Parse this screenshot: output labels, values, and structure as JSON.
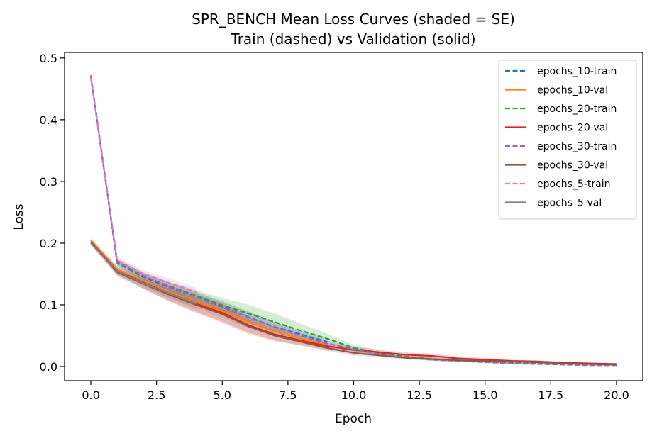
{
  "chart_data": {
    "type": "line",
    "title_line1": "SPR_BENCH Mean Loss Curves (shaded = SE)",
    "title_line2": "Train (dashed) vs Validation (solid)",
    "xlabel": "Epoch",
    "ylabel": "Loss",
    "xlim": [
      -1,
      21
    ],
    "ylim": [
      -0.023,
      0.509
    ],
    "xticks": [
      0,
      2.5,
      5,
      7.5,
      10,
      12.5,
      15,
      17.5,
      20
    ],
    "xtick_labels": [
      "0.0",
      "2.5",
      "5.0",
      "7.5",
      "10.0",
      "12.5",
      "15.0",
      "17.5",
      "20.0"
    ],
    "yticks": [
      0.0,
      0.1,
      0.2,
      0.3,
      0.4,
      0.5
    ],
    "ytick_labels": [
      "0.0",
      "0.1",
      "0.2",
      "0.3",
      "0.4",
      "0.5"
    ],
    "grid": false,
    "legend_position": "top-right",
    "series": [
      {
        "name": "epochs_10-train",
        "color": "#1f77b4",
        "dash": true,
        "x": [
          0,
          1,
          2,
          3,
          4,
          5,
          6,
          7,
          8,
          9
        ],
        "y": [
          0.47,
          0.168,
          0.145,
          0.128,
          0.113,
          0.097,
          0.08,
          0.064,
          0.052,
          0.04
        ],
        "se": [
          0.004,
          0.005,
          0.006,
          0.007,
          0.008,
          0.009,
          0.009,
          0.008,
          0.006,
          0.005
        ]
      },
      {
        "name": "epochs_10-val",
        "color": "#ff7f0e",
        "dash": false,
        "x": [
          0,
          1,
          2,
          3,
          4,
          5,
          6,
          7,
          8,
          9
        ],
        "y": [
          0.205,
          0.157,
          0.138,
          0.12,
          0.105,
          0.09,
          0.072,
          0.057,
          0.045,
          0.035
        ],
        "se": [
          0.004,
          0.006,
          0.007,
          0.009,
          0.01,
          0.011,
          0.01,
          0.009,
          0.007,
          0.005
        ]
      },
      {
        "name": "epochs_20-train",
        "color": "#2ca02c",
        "dash": true,
        "x": [
          0,
          1,
          2,
          3,
          4,
          5,
          6,
          7,
          8,
          9,
          10,
          11,
          12,
          13,
          14,
          15,
          16,
          17,
          18,
          19,
          20
        ],
        "y": [
          0.47,
          0.168,
          0.146,
          0.13,
          0.115,
          0.099,
          0.086,
          0.072,
          0.058,
          0.045,
          0.03,
          0.022,
          0.016,
          0.012,
          0.01,
          0.008,
          0.006,
          0.005,
          0.004,
          0.003,
          0.003
        ],
        "se": [
          0.004,
          0.005,
          0.006,
          0.007,
          0.009,
          0.012,
          0.014,
          0.014,
          0.011,
          0.008,
          0.005,
          0.004,
          0.003,
          0.003,
          0.002,
          0.002,
          0.002,
          0.002,
          0.001,
          0.001,
          0.001
        ]
      },
      {
        "name": "epochs_20-val",
        "color": "#d62728",
        "dash": false,
        "x": [
          0,
          1,
          2,
          3,
          4,
          5,
          6,
          7,
          8,
          9,
          10,
          11,
          12,
          13,
          14,
          15,
          16,
          17,
          18,
          19,
          20
        ],
        "y": [
          0.202,
          0.155,
          0.136,
          0.118,
          0.102,
          0.087,
          0.067,
          0.052,
          0.042,
          0.033,
          0.027,
          0.023,
          0.019,
          0.017,
          0.013,
          0.011,
          0.009,
          0.008,
          0.006,
          0.005,
          0.004
        ],
        "se": [
          0.004,
          0.007,
          0.01,
          0.013,
          0.015,
          0.016,
          0.014,
          0.011,
          0.008,
          0.006,
          0.005,
          0.004,
          0.004,
          0.004,
          0.003,
          0.003,
          0.002,
          0.002,
          0.002,
          0.001,
          0.001
        ]
      },
      {
        "name": "epochs_30-train",
        "color": "#9467bd",
        "dash": true,
        "x": [
          0,
          1,
          2,
          3,
          4,
          5,
          6,
          7,
          8,
          9,
          10,
          11,
          12,
          13,
          14,
          15,
          16,
          17,
          18,
          19,
          20
        ],
        "y": [
          0.472,
          0.17,
          0.147,
          0.129,
          0.113,
          0.096,
          0.08,
          0.064,
          0.05,
          0.037,
          0.028,
          0.02,
          0.015,
          0.011,
          0.009,
          0.007,
          0.005,
          0.004,
          0.003,
          0.002,
          0.002
        ],
        "se": [
          0.004,
          0.005,
          0.006,
          0.007,
          0.008,
          0.009,
          0.009,
          0.008,
          0.006,
          0.005,
          0.004,
          0.003,
          0.002,
          0.002,
          0.002,
          0.001,
          0.001,
          0.001,
          0.001,
          0.001,
          0.001
        ]
      },
      {
        "name": "epochs_30-val",
        "color": "#8c564b",
        "dash": false,
        "x": [
          0,
          1,
          2,
          3,
          4,
          5,
          6,
          7,
          8,
          9,
          10,
          11,
          12,
          13,
          14,
          15,
          16,
          17,
          18,
          19,
          20
        ],
        "y": [
          0.202,
          0.153,
          0.134,
          0.116,
          0.1,
          0.085,
          0.065,
          0.05,
          0.04,
          0.03,
          0.022,
          0.018,
          0.014,
          0.012,
          0.01,
          0.009,
          0.008,
          0.007,
          0.005,
          0.004,
          0.003
        ],
        "se": [
          0.004,
          0.006,
          0.008,
          0.01,
          0.011,
          0.012,
          0.01,
          0.008,
          0.006,
          0.005,
          0.004,
          0.003,
          0.003,
          0.002,
          0.002,
          0.002,
          0.001,
          0.001,
          0.001,
          0.001,
          0.001
        ]
      },
      {
        "name": "epochs_5-train",
        "color": "#e377c2",
        "dash": true,
        "x": [
          0,
          1,
          2,
          3,
          4
        ],
        "y": [
          0.468,
          0.172,
          0.15,
          0.135,
          0.121
        ],
        "se": [
          0.005,
          0.006,
          0.006,
          0.007,
          0.007
        ]
      },
      {
        "name": "epochs_5-val",
        "color": "#7f7f7f",
        "dash": false,
        "x": [
          0,
          1,
          2,
          3,
          4
        ],
        "y": [
          0.2,
          0.155,
          0.135,
          0.118,
          0.102
        ],
        "se": [
          0.004,
          0.006,
          0.007,
          0.008,
          0.009
        ]
      }
    ]
  }
}
